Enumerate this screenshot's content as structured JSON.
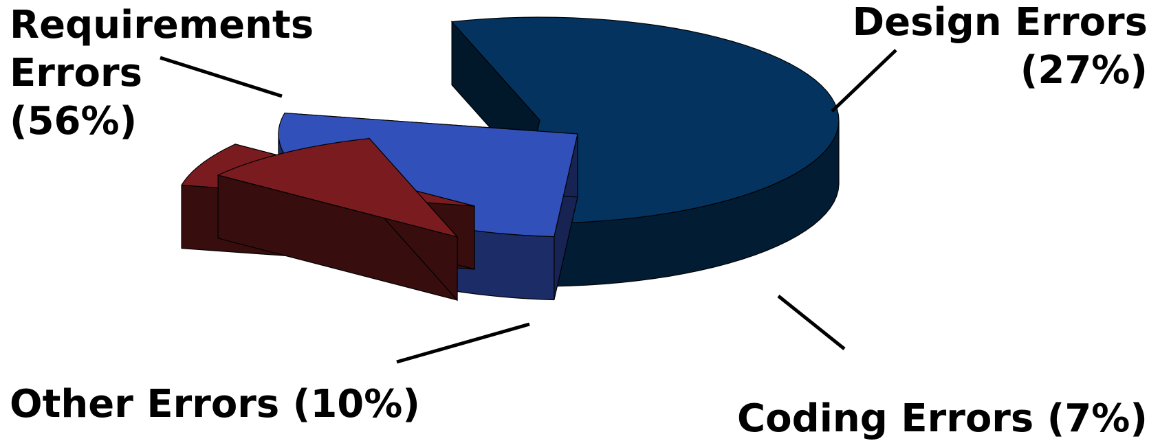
{
  "chart_data": {
    "type": "pie",
    "title": "",
    "style": "3d-exploded",
    "slices": [
      {
        "name": "Requirements Errors",
        "value": 56,
        "label_lines": [
          "Requirements",
          "Errors",
          "(56%)"
        ],
        "color": "#03335e"
      },
      {
        "name": "Design Errors",
        "value": 27,
        "label_lines": [
          "Design Errors",
          "(27%)"
        ],
        "color": "#3250b9"
      },
      {
        "name": "Coding Errors",
        "value": 7,
        "label_lines": [
          "Coding Errors (7%)"
        ],
        "color": "#7a1c1f"
      },
      {
        "name": "Other Errors",
        "value": 10,
        "label_lines": [
          "Other Errors (10%)"
        ],
        "color": "#7a1c1f"
      }
    ],
    "legend": "none"
  }
}
